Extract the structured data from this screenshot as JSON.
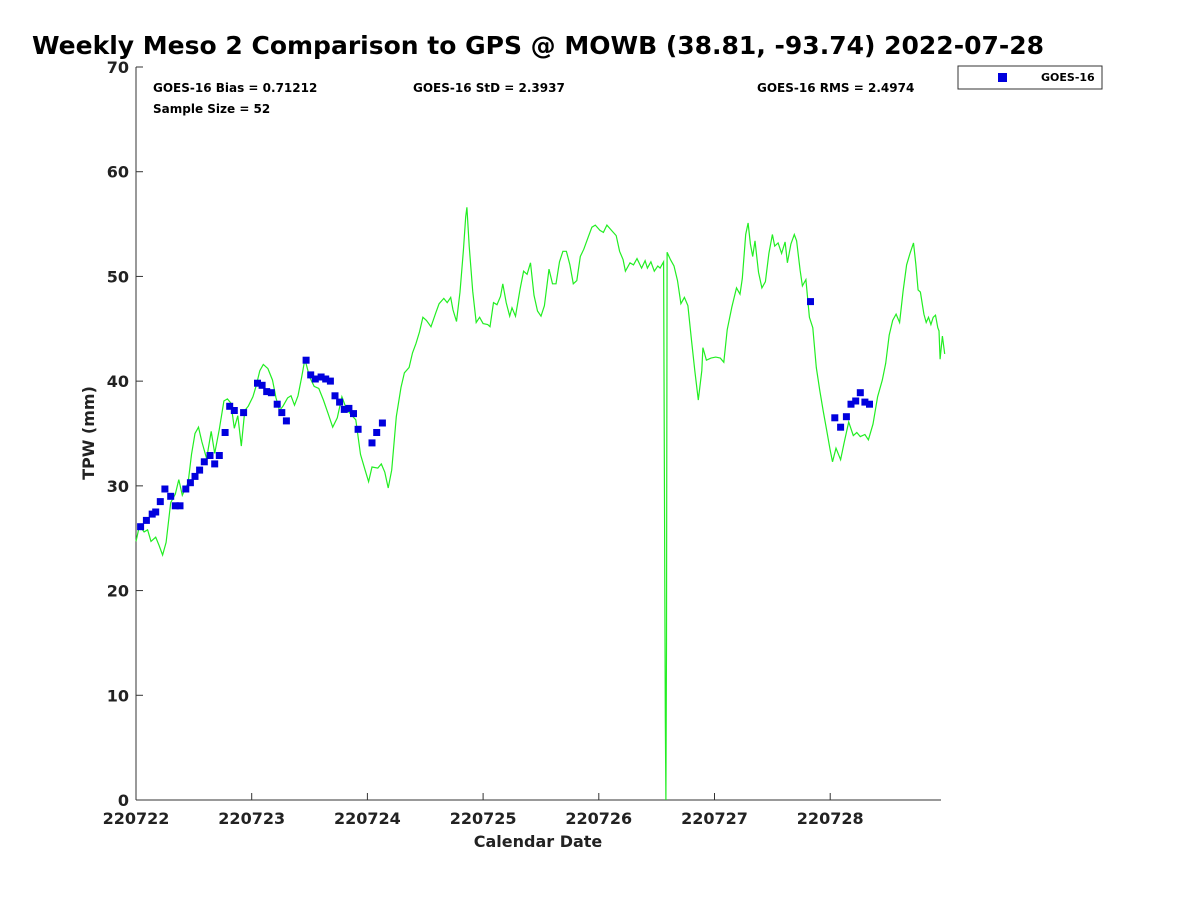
{
  "chart_data": {
    "type": "line",
    "title": "Weekly Meso 2 Comparison to GPS @ MOWB (38.81, -93.74) 2022-07-28",
    "xlabel": "Calendar Date",
    "ylabel": "TPW (mm)",
    "xlim": [
      0,
      6.95
    ],
    "ylim": [
      0,
      70
    ],
    "x_ticks": [
      {
        "value": 0,
        "label": "220722"
      },
      {
        "value": 1,
        "label": "220723"
      },
      {
        "value": 2,
        "label": "220724"
      },
      {
        "value": 3,
        "label": "220725"
      },
      {
        "value": 4,
        "label": "220726"
      },
      {
        "value": 5,
        "label": "220727"
      },
      {
        "value": 6,
        "label": "220728"
      }
    ],
    "y_ticks": [
      {
        "value": 0,
        "label": "0"
      },
      {
        "value": 10,
        "label": "10"
      },
      {
        "value": 20,
        "label": "20"
      },
      {
        "value": 30,
        "label": "30"
      },
      {
        "value": 40,
        "label": "40"
      },
      {
        "value": 50,
        "label": "50"
      },
      {
        "value": 60,
        "label": "60"
      },
      {
        "value": 70,
        "label": "70"
      }
    ],
    "grid": false,
    "legend_position": "outside-top-right",
    "stats": {
      "bias": "GOES-16 Bias = 0.71212",
      "sample_size": "Sample Size = 52",
      "std": "GOES-16 StD = 2.3937",
      "rms": "GOES-16 RMS = 2.4974"
    },
    "series": [
      {
        "name": "GOES-16",
        "kind": "scatter",
        "marker": "square",
        "color": "#0000dd",
        "points": [
          [
            0.04,
            26.1
          ],
          [
            0.09,
            26.7
          ],
          [
            0.14,
            27.3
          ],
          [
            0.17,
            27.5
          ],
          [
            0.21,
            28.5
          ],
          [
            0.25,
            29.7
          ],
          [
            0.3,
            29.0
          ],
          [
            0.34,
            28.1
          ],
          [
            0.38,
            28.1
          ],
          [
            0.43,
            29.7
          ],
          [
            0.47,
            30.3
          ],
          [
            0.51,
            30.9
          ],
          [
            0.55,
            31.5
          ],
          [
            0.59,
            32.3
          ],
          [
            0.64,
            32.9
          ],
          [
            0.68,
            32.1
          ],
          [
            0.72,
            32.9
          ],
          [
            0.77,
            35.1
          ],
          [
            0.81,
            37.6
          ],
          [
            0.85,
            37.2
          ],
          [
            0.93,
            37.0
          ],
          [
            1.05,
            39.8
          ],
          [
            1.09,
            39.6
          ],
          [
            1.13,
            39.0
          ],
          [
            1.17,
            38.9
          ],
          [
            1.22,
            37.8
          ],
          [
            1.26,
            37.0
          ],
          [
            1.3,
            36.2
          ],
          [
            1.47,
            42.0
          ],
          [
            1.51,
            40.6
          ],
          [
            1.55,
            40.2
          ],
          [
            1.6,
            40.4
          ],
          [
            1.64,
            40.2
          ],
          [
            1.68,
            40.0
          ],
          [
            1.72,
            38.6
          ],
          [
            1.76,
            38.0
          ],
          [
            1.8,
            37.3
          ],
          [
            1.84,
            37.4
          ],
          [
            1.88,
            36.9
          ],
          [
            1.92,
            35.4
          ],
          [
            2.04,
            34.1
          ],
          [
            2.08,
            35.1
          ],
          [
            2.13,
            36.0
          ],
          [
            5.83,
            47.6
          ],
          [
            6.04,
            36.5
          ],
          [
            6.09,
            35.6
          ],
          [
            6.14,
            36.6
          ],
          [
            6.18,
            37.8
          ],
          [
            6.22,
            38.1
          ],
          [
            6.26,
            38.9
          ],
          [
            6.3,
            38.0
          ],
          [
            6.34,
            37.8
          ]
        ]
      },
      {
        "name": "",
        "kind": "line",
        "color": "#22ee22",
        "points": [
          [
            0.0,
            24.7
          ],
          [
            0.03,
            26.2
          ],
          [
            0.07,
            25.6
          ],
          [
            0.1,
            25.8
          ],
          [
            0.13,
            24.7
          ],
          [
            0.17,
            25.1
          ],
          [
            0.2,
            24.3
          ],
          [
            0.23,
            23.4
          ],
          [
            0.26,
            24.6
          ],
          [
            0.3,
            28.4
          ],
          [
            0.34,
            29.2
          ],
          [
            0.37,
            30.6
          ],
          [
            0.4,
            29.1
          ],
          [
            0.45,
            30.3
          ],
          [
            0.48,
            33.0
          ],
          [
            0.51,
            35.0
          ],
          [
            0.54,
            35.6
          ],
          [
            0.57,
            34.2
          ],
          [
            0.61,
            32.6
          ],
          [
            0.65,
            35.2
          ],
          [
            0.68,
            33.1
          ],
          [
            0.72,
            35.4
          ],
          [
            0.76,
            38.1
          ],
          [
            0.79,
            38.3
          ],
          [
            0.82,
            37.9
          ],
          [
            0.85,
            35.5
          ],
          [
            0.88,
            36.7
          ],
          [
            0.91,
            33.8
          ],
          [
            0.94,
            37.2
          ],
          [
            0.97,
            37.6
          ],
          [
            1.01,
            38.5
          ],
          [
            1.04,
            39.6
          ],
          [
            1.07,
            41.0
          ],
          [
            1.1,
            41.6
          ],
          [
            1.14,
            41.2
          ],
          [
            1.18,
            40.1
          ],
          [
            1.21,
            38.4
          ],
          [
            1.24,
            37.2
          ],
          [
            1.27,
            37.6
          ],
          [
            1.31,
            38.4
          ],
          [
            1.34,
            38.6
          ],
          [
            1.37,
            37.7
          ],
          [
            1.4,
            38.6
          ],
          [
            1.43,
            40.3
          ],
          [
            1.46,
            42.1
          ],
          [
            1.5,
            40.4
          ],
          [
            1.54,
            39.5
          ],
          [
            1.58,
            39.3
          ],
          [
            1.62,
            38.2
          ],
          [
            1.66,
            36.9
          ],
          [
            1.7,
            35.6
          ],
          [
            1.74,
            36.5
          ],
          [
            1.78,
            38.5
          ],
          [
            1.82,
            37.3
          ],
          [
            1.86,
            36.8
          ],
          [
            1.9,
            36.3
          ],
          [
            1.94,
            33.0
          ],
          [
            1.98,
            31.5
          ],
          [
            2.01,
            30.4
          ],
          [
            2.04,
            31.8
          ],
          [
            2.09,
            31.7
          ],
          [
            2.12,
            32.1
          ],
          [
            2.15,
            31.3
          ],
          [
            2.18,
            29.8
          ],
          [
            2.21,
            31.5
          ],
          [
            2.25,
            36.6
          ],
          [
            2.29,
            39.4
          ],
          [
            2.32,
            40.8
          ],
          [
            2.36,
            41.3
          ],
          [
            2.39,
            42.7
          ],
          [
            2.42,
            43.6
          ],
          [
            2.45,
            44.7
          ],
          [
            2.48,
            46.1
          ],
          [
            2.51,
            45.8
          ],
          [
            2.55,
            45.2
          ],
          [
            2.59,
            46.5
          ],
          [
            2.62,
            47.4
          ],
          [
            2.66,
            47.9
          ],
          [
            2.69,
            47.5
          ],
          [
            2.72,
            48.0
          ],
          [
            2.74,
            46.8
          ],
          [
            2.77,
            45.7
          ],
          [
            2.8,
            48.5
          ],
          [
            2.83,
            52.5
          ],
          [
            2.85,
            55.7
          ],
          [
            2.86,
            56.6
          ],
          [
            2.88,
            52.9
          ],
          [
            2.91,
            48.6
          ],
          [
            2.94,
            45.6
          ],
          [
            2.97,
            46.1
          ],
          [
            3.0,
            45.5
          ],
          [
            3.04,
            45.4
          ],
          [
            3.06,
            45.2
          ],
          [
            3.09,
            47.5
          ],
          [
            3.12,
            47.3
          ],
          [
            3.15,
            48.1
          ],
          [
            3.17,
            49.3
          ],
          [
            3.2,
            47.5
          ],
          [
            3.23,
            46.2
          ],
          [
            3.25,
            47.0
          ],
          [
            3.28,
            46.2
          ],
          [
            3.32,
            48.8
          ],
          [
            3.35,
            50.5
          ],
          [
            3.38,
            50.2
          ],
          [
            3.41,
            51.3
          ],
          [
            3.44,
            48.2
          ],
          [
            3.47,
            46.7
          ],
          [
            3.5,
            46.2
          ],
          [
            3.53,
            47.2
          ],
          [
            3.57,
            50.7
          ],
          [
            3.6,
            49.3
          ],
          [
            3.63,
            49.3
          ],
          [
            3.66,
            51.4
          ],
          [
            3.69,
            52.4
          ],
          [
            3.72,
            52.4
          ],
          [
            3.75,
            51.1
          ],
          [
            3.78,
            49.3
          ],
          [
            3.81,
            49.6
          ],
          [
            3.84,
            51.9
          ],
          [
            3.87,
            52.6
          ],
          [
            3.91,
            53.8
          ],
          [
            3.94,
            54.7
          ],
          [
            3.97,
            54.9
          ],
          [
            4.01,
            54.4
          ],
          [
            4.04,
            54.2
          ],
          [
            4.07,
            54.9
          ],
          [
            4.11,
            54.4
          ],
          [
            4.15,
            53.9
          ],
          [
            4.18,
            52.4
          ],
          [
            4.21,
            51.6
          ],
          [
            4.23,
            50.5
          ],
          [
            4.27,
            51.3
          ],
          [
            4.3,
            51.1
          ],
          [
            4.33,
            51.7
          ],
          [
            4.37,
            50.8
          ],
          [
            4.4,
            51.5
          ],
          [
            4.42,
            50.8
          ],
          [
            4.45,
            51.4
          ],
          [
            4.48,
            50.5
          ],
          [
            4.51,
            51.0
          ],
          [
            4.53,
            50.8
          ],
          [
            4.56,
            51.4
          ],
          [
            4.575,
            8.0
          ],
          [
            4.58,
            0.0
          ],
          [
            4.585,
            15.0
          ],
          [
            4.59,
            52.3
          ],
          [
            4.62,
            51.6
          ],
          [
            4.65,
            51.0
          ],
          [
            4.68,
            49.6
          ],
          [
            4.71,
            47.4
          ],
          [
            4.74,
            48.0
          ],
          [
            4.77,
            47.2
          ],
          [
            4.8,
            44.0
          ],
          [
            4.83,
            41.0
          ],
          [
            4.86,
            38.2
          ],
          [
            4.89,
            41.0
          ],
          [
            4.9,
            43.2
          ],
          [
            4.93,
            42.0
          ],
          [
            4.97,
            42.2
          ],
          [
            5.01,
            42.3
          ],
          [
            5.05,
            42.2
          ],
          [
            5.08,
            41.8
          ],
          [
            5.11,
            44.9
          ],
          [
            5.15,
            47.1
          ],
          [
            5.19,
            48.9
          ],
          [
            5.22,
            48.3
          ],
          [
            5.24,
            49.8
          ],
          [
            5.27,
            54.0
          ],
          [
            5.29,
            55.1
          ],
          [
            5.31,
            53.1
          ],
          [
            5.33,
            51.9
          ],
          [
            5.35,
            53.4
          ],
          [
            5.38,
            50.4
          ],
          [
            5.41,
            48.9
          ],
          [
            5.44,
            49.5
          ],
          [
            5.47,
            52.2
          ],
          [
            5.5,
            54.0
          ],
          [
            5.52,
            52.9
          ],
          [
            5.55,
            53.2
          ],
          [
            5.58,
            52.2
          ],
          [
            5.61,
            53.3
          ],
          [
            5.63,
            51.3
          ],
          [
            5.66,
            53.1
          ],
          [
            5.69,
            54.0
          ],
          [
            5.71,
            53.4
          ],
          [
            5.74,
            50.6
          ],
          [
            5.76,
            49.1
          ],
          [
            5.79,
            49.7
          ],
          [
            5.82,
            46.1
          ],
          [
            5.85,
            45.1
          ],
          [
            5.88,
            41.3
          ],
          [
            5.91,
            39.1
          ],
          [
            5.94,
            37.1
          ],
          [
            5.97,
            35.3
          ],
          [
            6.0,
            33.4
          ],
          [
            6.02,
            32.3
          ],
          [
            6.05,
            33.6
          ],
          [
            6.09,
            32.5
          ],
          [
            6.12,
            34.1
          ],
          [
            6.16,
            36.1
          ],
          [
            6.2,
            34.8
          ],
          [
            6.23,
            35.1
          ],
          [
            6.26,
            34.7
          ],
          [
            6.3,
            34.9
          ],
          [
            6.33,
            34.4
          ],
          [
            6.37,
            35.9
          ],
          [
            6.41,
            38.5
          ],
          [
            6.45,
            40.1
          ],
          [
            6.48,
            41.7
          ],
          [
            6.51,
            44.4
          ],
          [
            6.54,
            45.8
          ],
          [
            6.57,
            46.4
          ],
          [
            6.6,
            45.6
          ],
          [
            6.63,
            48.6
          ],
          [
            6.66,
            51.1
          ],
          [
            6.69,
            52.2
          ],
          [
            6.72,
            53.2
          ],
          [
            6.74,
            51.2
          ],
          [
            6.76,
            48.7
          ],
          [
            6.78,
            48.5
          ],
          [
            6.81,
            46.4
          ],
          [
            6.83,
            45.6
          ],
          [
            6.85,
            46.1
          ],
          [
            6.87,
            45.4
          ],
          [
            6.89,
            46.1
          ],
          [
            6.91,
            46.3
          ],
          [
            6.93,
            45.1
          ],
          [
            6.94,
            44.8
          ],
          [
            6.95,
            42.1
          ],
          [
            6.97,
            44.3
          ],
          [
            6.99,
            42.6
          ]
        ]
      }
    ]
  }
}
